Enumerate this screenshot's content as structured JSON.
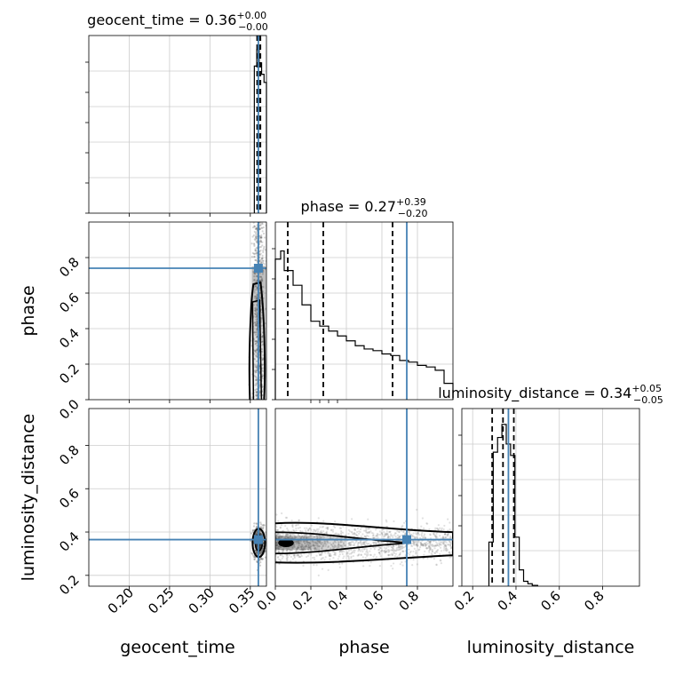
{
  "chart_data": [
    {
      "type": "histogram",
      "panel": "geocent_time marginal",
      "title_param": "geocent_time",
      "title_value": "0.36",
      "title_plus": "+0.00",
      "title_minus": "−0.00",
      "xlim": [
        0.15,
        0.37
      ],
      "bins": [
        {
          "x0": 0.355,
          "x1": 0.358,
          "y": 0.9
        },
        {
          "x0": 0.358,
          "x1": 0.361,
          "y": 1.0
        },
        {
          "x0": 0.361,
          "x1": 0.364,
          "y": 0.92
        },
        {
          "x0": 0.364,
          "x1": 0.367,
          "y": 0.85
        },
        {
          "x0": 0.367,
          "x1": 0.37,
          "y": 0.8
        }
      ],
      "quantiles": [
        0.3585,
        0.3605,
        0.3625
      ],
      "truth": 0.36,
      "color": "#000000",
      "truth_color": "#4682b4"
    },
    {
      "type": "histogram",
      "panel": "phase marginal",
      "title_param": "phase",
      "title_value": "0.27",
      "title_plus": "+0.39",
      "title_minus": "−0.20",
      "xlim": [
        0.0,
        1.0
      ],
      "bins": [
        {
          "x0": 0.0,
          "x1": 0.03,
          "y": 0.86
        },
        {
          "x0": 0.03,
          "x1": 0.05,
          "y": 0.91
        },
        {
          "x0": 0.05,
          "x1": 0.1,
          "y": 0.79
        },
        {
          "x0": 0.1,
          "x1": 0.15,
          "y": 0.7
        },
        {
          "x0": 0.15,
          "x1": 0.2,
          "y": 0.58
        },
        {
          "x0": 0.2,
          "x1": 0.25,
          "y": 0.48
        },
        {
          "x0": 0.25,
          "x1": 0.3,
          "y": 0.45
        },
        {
          "x0": 0.3,
          "x1": 0.35,
          "y": 0.42
        },
        {
          "x0": 0.35,
          "x1": 0.4,
          "y": 0.39
        },
        {
          "x0": 0.4,
          "x1": 0.45,
          "y": 0.36
        },
        {
          "x0": 0.45,
          "x1": 0.5,
          "y": 0.33
        },
        {
          "x0": 0.5,
          "x1": 0.55,
          "y": 0.31
        },
        {
          "x0": 0.55,
          "x1": 0.6,
          "y": 0.3
        },
        {
          "x0": 0.6,
          "x1": 0.65,
          "y": 0.28
        },
        {
          "x0": 0.65,
          "x1": 0.7,
          "y": 0.27
        },
        {
          "x0": 0.7,
          "x1": 0.75,
          "y": 0.24
        },
        {
          "x0": 0.75,
          "x1": 0.8,
          "y": 0.23
        },
        {
          "x0": 0.8,
          "x1": 0.85,
          "y": 0.21
        },
        {
          "x0": 0.85,
          "x1": 0.9,
          "y": 0.2
        },
        {
          "x0": 0.9,
          "x1": 0.95,
          "y": 0.18
        },
        {
          "x0": 0.95,
          "x1": 1.0,
          "y": 0.1
        }
      ],
      "quantiles": [
        0.07,
        0.27,
        0.66
      ],
      "truth": 0.74,
      "color": "#000000",
      "truth_color": "#4682b4"
    },
    {
      "type": "histogram",
      "panel": "luminosity_distance marginal",
      "title_param": "luminosity_distance",
      "title_value": "0.34",
      "title_plus": "+0.05",
      "title_minus": "−0.05",
      "xlim": [
        0.15,
        0.97
      ],
      "xticks": [
        0.2,
        0.4,
        0.6,
        0.8
      ],
      "xtick_labels": [
        "0.2",
        "0.4",
        "0.6",
        "0.8"
      ],
      "bins": [
        {
          "x0": 0.275,
          "x1": 0.295,
          "y": 0.27
        },
        {
          "x0": 0.295,
          "x1": 0.315,
          "y": 0.82
        },
        {
          "x0": 0.315,
          "x1": 0.335,
          "y": 0.91
        },
        {
          "x0": 0.335,
          "x1": 0.355,
          "y": 0.99
        },
        {
          "x0": 0.355,
          "x1": 0.375,
          "y": 0.87
        },
        {
          "x0": 0.375,
          "x1": 0.395,
          "y": 0.8
        },
        {
          "x0": 0.395,
          "x1": 0.415,
          "y": 0.3
        },
        {
          "x0": 0.415,
          "x1": 0.435,
          "y": 0.1
        },
        {
          "x0": 0.435,
          "x1": 0.455,
          "y": 0.03
        },
        {
          "x0": 0.455,
          "x1": 0.475,
          "y": 0.015
        },
        {
          "x0": 0.475,
          "x1": 0.5,
          "y": 0.005
        }
      ],
      "quantiles": [
        0.29,
        0.34,
        0.39
      ],
      "truth": 0.365,
      "color": "#000000",
      "truth_color": "#4682b4"
    },
    {
      "type": "scatter",
      "panel": "phase vs geocent_time",
      "x_param": "geocent_time",
      "y_param": "phase",
      "xlim": [
        0.15,
        0.37
      ],
      "ylim": [
        0.0,
        1.0
      ],
      "yticks": [
        0.0,
        0.2,
        0.4,
        0.6,
        0.8
      ],
      "ytick_labels": [
        "0.0",
        "0.2",
        "0.4",
        "0.6",
        "0.8"
      ],
      "ylabel": "phase",
      "cloud": {
        "x_center": 0.3605,
        "x_spread": 0.0035,
        "y_min": 0.0,
        "y_max": 1.0
      },
      "truth": {
        "x": 0.36,
        "y": 0.74
      },
      "color": "#000000",
      "truth_color": "#4682b4"
    },
    {
      "type": "scatter",
      "panel": "luminosity_distance vs geocent_time",
      "x_param": "geocent_time",
      "y_param": "luminosity_distance",
      "xlim": [
        0.15,
        0.37
      ],
      "ylim": [
        0.15,
        0.97
      ],
      "xticks": [
        0.2,
        0.25,
        0.3,
        0.35
      ],
      "xtick_labels": [
        "0.20",
        "0.25",
        "0.30",
        "0.35"
      ],
      "yticks": [
        0.2,
        0.4,
        0.6,
        0.8
      ],
      "ytick_labels": [
        "0.2",
        "0.4",
        "0.6",
        "0.8"
      ],
      "xlabel": "geocent_time",
      "ylabel": "luminosity_distance",
      "cloud": {
        "x_center": 0.3605,
        "x_spread": 0.0035,
        "y_center": 0.35,
        "y_spread": 0.04
      },
      "truth": {
        "x": 0.36,
        "y": 0.365
      },
      "color": "#000000",
      "truth_color": "#4682b4"
    },
    {
      "type": "scatter",
      "panel": "luminosity_distance vs phase",
      "x_param": "phase",
      "y_param": "luminosity_distance",
      "xlim": [
        0.0,
        1.0
      ],
      "ylim": [
        0.15,
        0.97
      ],
      "xticks": [
        0.0,
        0.2,
        0.4,
        0.6,
        0.8
      ],
      "xtick_labels": [
        "0.0",
        "0.2",
        "0.4",
        "0.6",
        "0.8"
      ],
      "xlabel": "phase",
      "cloud": {
        "x_min": 0.0,
        "x_max": 1.0,
        "y_center": 0.35,
        "y_spread": 0.04
      },
      "truth": {
        "x": 0.74,
        "y": 0.365
      },
      "color": "#000000",
      "truth_color": "#4682b4"
    }
  ]
}
